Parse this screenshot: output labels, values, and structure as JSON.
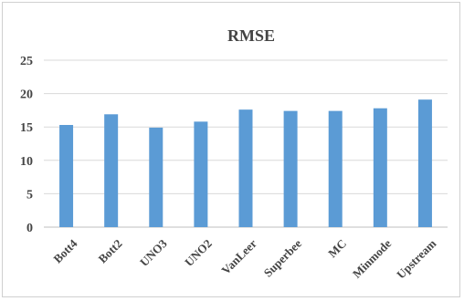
{
  "chart_data": {
    "type": "bar",
    "title": "RMSE",
    "categories": [
      "Bott4",
      "Bott2",
      "UNO3",
      "UNO2",
      "VanLeer",
      "Superbee",
      "MC",
      "Minmode",
      "Upstream"
    ],
    "series": [
      {
        "values": [
          15.3,
          16.9,
          14.9,
          15.8,
          17.6,
          17.4,
          17.4,
          17.8,
          19.1
        ]
      }
    ],
    "yticks": [
      "0",
      "5",
      "10",
      "15",
      "20",
      "25"
    ],
    "ylim": [
      0,
      25
    ],
    "grid": true,
    "legend": "none",
    "bar_color": "#5b9bd5"
  }
}
